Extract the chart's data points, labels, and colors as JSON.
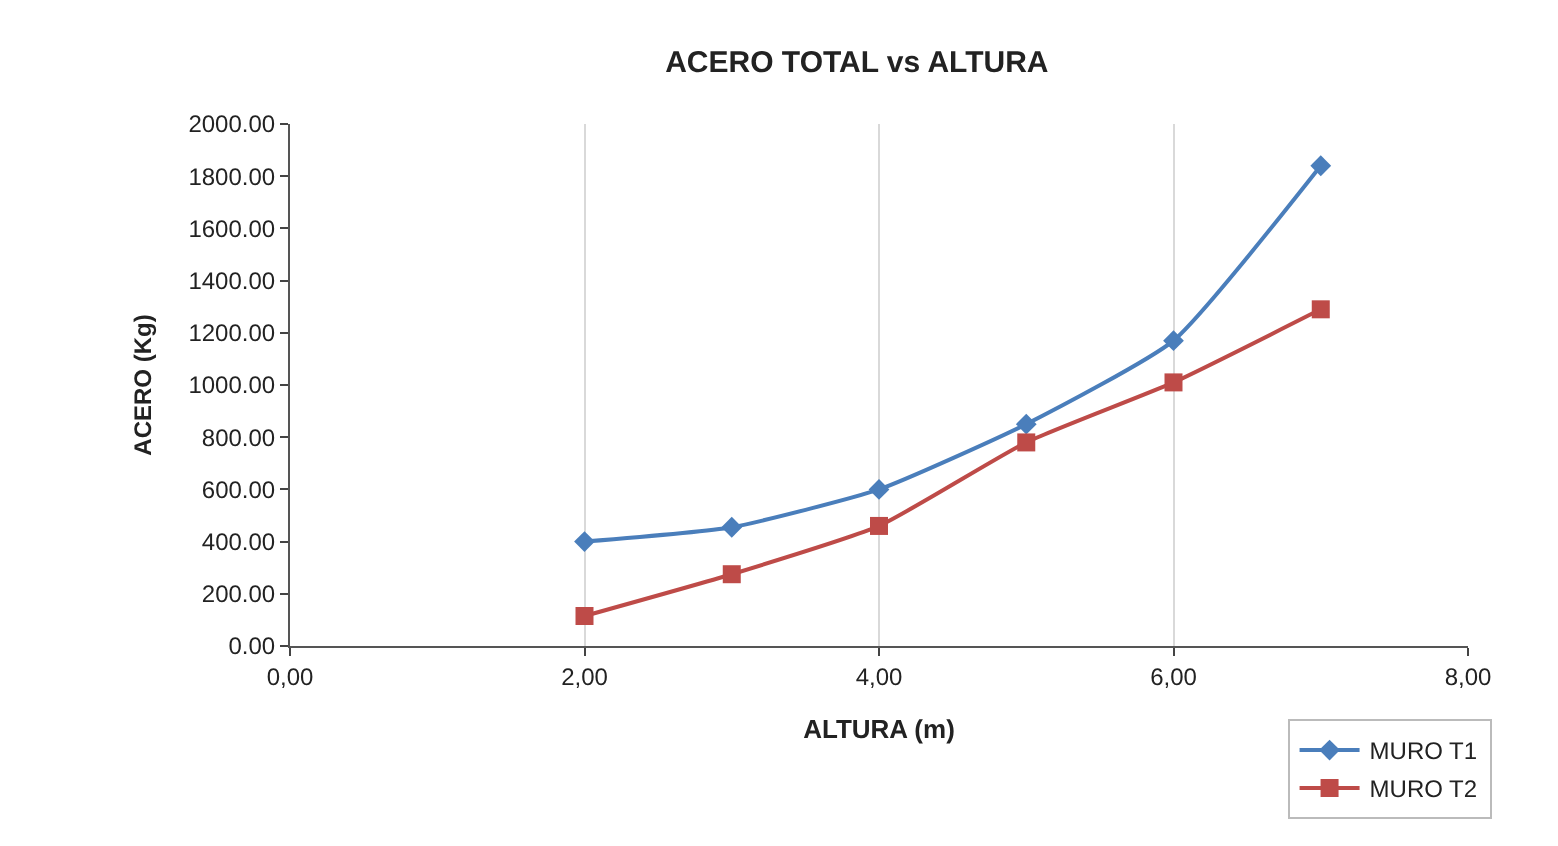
{
  "chart_data": {
    "type": "line",
    "title": "ACERO TOTAL vs ALTURA",
    "xlabel": "ALTURA (m)",
    "ylabel": "ACERO (Kg)",
    "x": [
      2,
      3,
      4,
      5,
      6,
      7
    ],
    "series": [
      {
        "name": "MURO T1",
        "color": "#4a7ebb",
        "marker": "diamond",
        "values": [
          400,
          455,
          600,
          850,
          1170,
          1840
        ]
      },
      {
        "name": "MURO T2",
        "color": "#be4b48",
        "marker": "square",
        "values": [
          115,
          275,
          460,
          780,
          1010,
          1290
        ]
      }
    ],
    "xlim": [
      0,
      8
    ],
    "xticks": [
      {
        "value": 0,
        "label": "0,00"
      },
      {
        "value": 2,
        "label": "2,00"
      },
      {
        "value": 4,
        "label": "4,00"
      },
      {
        "value": 6,
        "label": "6,00"
      },
      {
        "value": 8,
        "label": "8,00"
      }
    ],
    "ylim": [
      0,
      2000
    ],
    "yticks": [
      {
        "value": 0,
        "label": "0.00"
      },
      {
        "value": 200,
        "label": "200.00"
      },
      {
        "value": 400,
        "label": "400.00"
      },
      {
        "value": 600,
        "label": "600.00"
      },
      {
        "value": 800,
        "label": "800.00"
      },
      {
        "value": 1000,
        "label": "1000.00"
      },
      {
        "value": 1200,
        "label": "1200.00"
      },
      {
        "value": 1400,
        "label": "1400.00"
      },
      {
        "value": 1600,
        "label": "1600.00"
      },
      {
        "value": 1800,
        "label": "1800.00"
      },
      {
        "value": 2000,
        "label": "2000.00"
      }
    ],
    "grid": "x",
    "legend": "bottom right",
    "line_style": "solid"
  }
}
